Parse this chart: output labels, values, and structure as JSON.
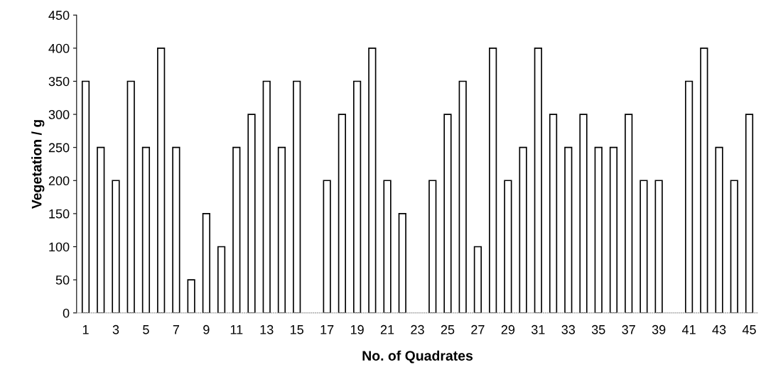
{
  "chart_data": {
    "type": "bar",
    "xlabel": "No. of Quadrates",
    "ylabel": "Vegetation / g",
    "categories": [
      "1",
      null,
      "3",
      null,
      "5",
      null,
      "7",
      null,
      "9",
      null,
      "11",
      null,
      "13",
      null,
      "15",
      null,
      "17",
      null,
      "19",
      null,
      "21",
      null,
      "23",
      null,
      "25",
      null,
      "27",
      null,
      "29",
      null,
      "31",
      null,
      "33",
      null,
      "35",
      null,
      "37",
      null,
      "39",
      null,
      "41",
      null,
      "43",
      null,
      "45"
    ],
    "values": [
      350,
      250,
      200,
      350,
      250,
      400,
      250,
      50,
      150,
      100,
      250,
      300,
      350,
      250,
      350,
      null,
      200,
      300,
      350,
      400,
      200,
      150,
      null,
      200,
      300,
      350,
      100,
      400,
      200,
      250,
      400,
      300,
      250,
      300,
      250,
      250,
      300,
      200,
      200,
      null,
      350,
      400,
      250,
      200,
      300
    ],
    "color": "#ffffff",
    "ylim": [
      0,
      450
    ],
    "yticks": [
      0,
      50,
      100,
      150,
      200,
      250,
      300,
      350,
      400,
      450
    ],
    "grid": false
  }
}
